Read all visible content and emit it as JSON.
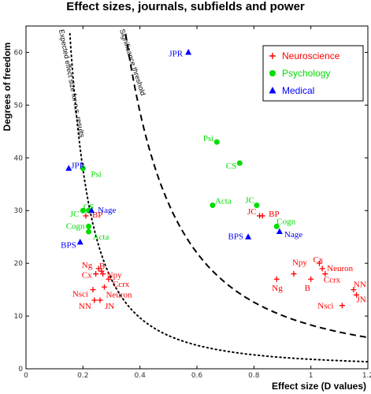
{
  "chart_data": {
    "type": "scatter",
    "title": "Effect sizes, journals, subfields and power",
    "xlabel": "Effect size (D values)",
    "ylabel": "Degrees of freedom",
    "xlim": [
      0,
      1.2
    ],
    "ylim": [
      0,
      65
    ],
    "xticks": [
      "0",
      "0.2",
      "0.4",
      "0.6",
      "0.8",
      "1",
      "1.2"
    ],
    "yticks": [
      "0",
      "10",
      "20",
      "30",
      "40",
      "50",
      "60"
    ],
    "grid": false,
    "legend": "top-right",
    "annotations": {
      "expected": "Expected effect size for n.s. results",
      "significance": "Significance threshold"
    },
    "series": [
      {
        "name": "Neuroscience",
        "marker": "plus",
        "color": "#ff0000",
        "points": [
          {
            "label": "BP",
            "x": 0.21,
            "y": 29
          },
          {
            "label": "Ng",
            "x": 0.255,
            "y": 19
          },
          {
            "label": "B",
            "x": 0.265,
            "y": 18.5
          },
          {
            "label": "Cx",
            "x": 0.245,
            "y": 18
          },
          {
            "label": "Npy",
            "x": 0.27,
            "y": 18
          },
          {
            "label": "Ccrx",
            "x": 0.29,
            "y": 17
          },
          {
            "label": "Neuron",
            "x": 0.275,
            "y": 15.5
          },
          {
            "label": "Nsci",
            "x": 0.235,
            "y": 15
          },
          {
            "label": "NN",
            "x": 0.24,
            "y": 13
          },
          {
            "label": "JN",
            "x": 0.26,
            "y": 13
          },
          {
            "label": "JC",
            "x": 0.82,
            "y": 29
          },
          {
            "label": "BP",
            "x": 0.83,
            "y": 29
          },
          {
            "label": "Npy",
            "x": 0.94,
            "y": 18
          },
          {
            "label": "Cx",
            "x": 1.03,
            "y": 20
          },
          {
            "label": "Neuron",
            "x": 1.04,
            "y": 19
          },
          {
            "label": "Ng",
            "x": 0.88,
            "y": 17
          },
          {
            "label": "B",
            "x": 1.0,
            "y": 17
          },
          {
            "label": "Ccrx",
            "x": 1.05,
            "y": 18
          },
          {
            "label": "NN",
            "x": 1.15,
            "y": 15
          },
          {
            "label": "JN",
            "x": 1.16,
            "y": 14
          },
          {
            "label": "Nsci",
            "x": 1.11,
            "y": 12
          }
        ]
      },
      {
        "name": "Psychology",
        "marker": "circle",
        "color": "#00dd00",
        "points": [
          {
            "label": "Psi",
            "x": 0.2,
            "y": 38
          },
          {
            "label": "JC",
            "x": 0.2,
            "y": 30
          },
          {
            "label": "CS",
            "x": 0.22,
            "y": 30
          },
          {
            "label": "Cogn",
            "x": 0.22,
            "y": 27
          },
          {
            "label": "Acta",
            "x": 0.22,
            "y": 26
          },
          {
            "label": "Psi",
            "x": 0.67,
            "y": 43
          },
          {
            "label": "CS",
            "x": 0.75,
            "y": 39
          },
          {
            "label": "Acta",
            "x": 0.655,
            "y": 31
          },
          {
            "label": "JC",
            "x": 0.81,
            "y": 31
          },
          {
            "label": "Cogn",
            "x": 0.88,
            "y": 27
          }
        ]
      },
      {
        "name": "Medical",
        "marker": "triangle",
        "color": "#0000ff",
        "points": [
          {
            "label": "JPR",
            "x": 0.15,
            "y": 38
          },
          {
            "label": "Nage",
            "x": 0.23,
            "y": 30
          },
          {
            "label": "BPS",
            "x": 0.19,
            "y": 24
          },
          {
            "label": "JPR",
            "x": 0.57,
            "y": 60
          },
          {
            "label": "BPS",
            "x": 0.78,
            "y": 25
          },
          {
            "label": "Nage",
            "x": 0.89,
            "y": 26
          }
        ]
      }
    ]
  }
}
